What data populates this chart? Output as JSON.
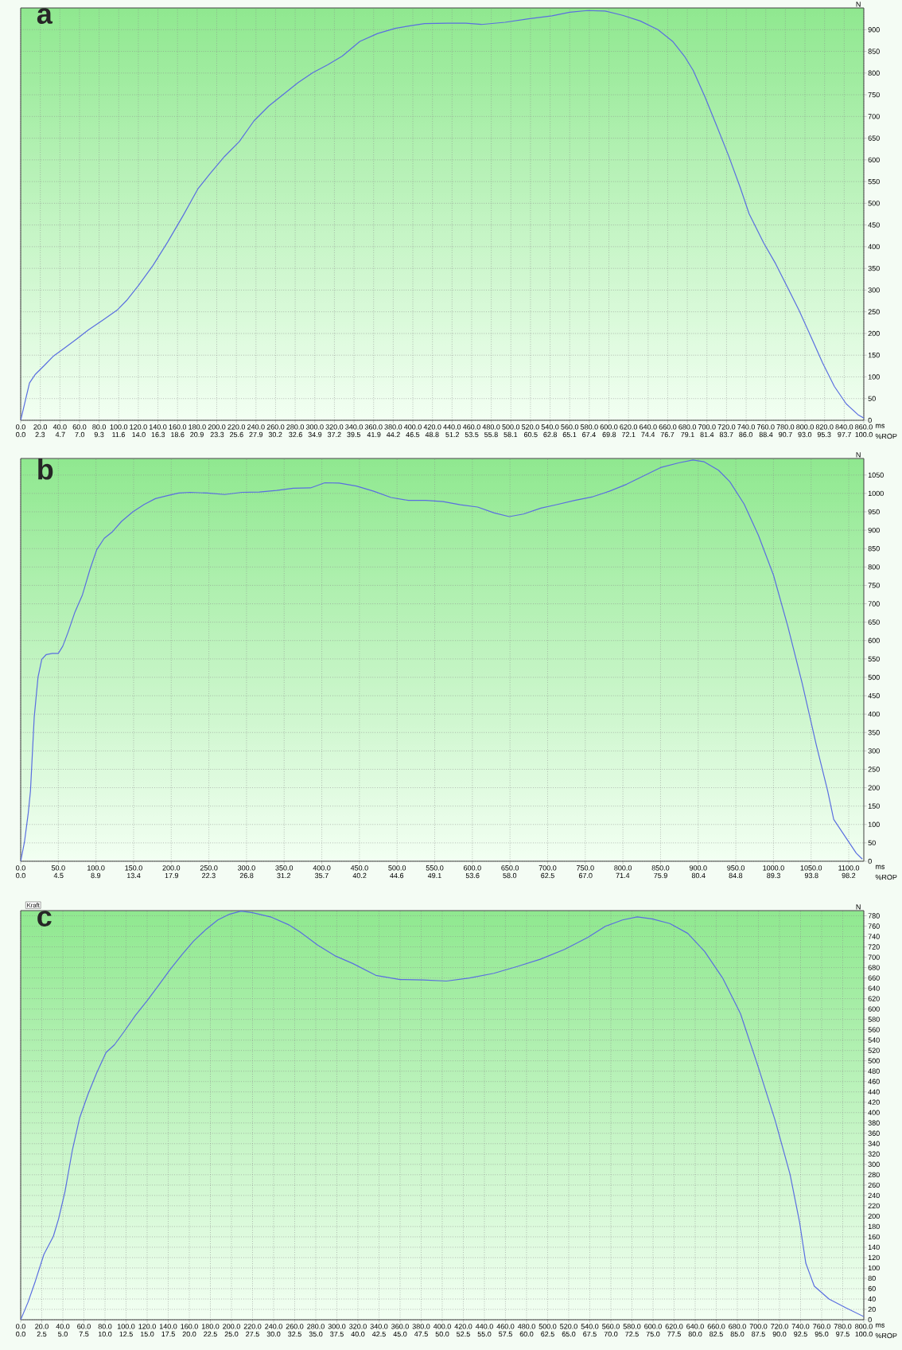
{
  "chart_data": [
    {
      "type": "line",
      "title": "a",
      "xlabel": "ms",
      "x2label": "%ROP",
      "ylabel": "N",
      "color": "#5a6ee0",
      "grid": true,
      "x": [
        0,
        9,
        15,
        24,
        33,
        45,
        57,
        69,
        84,
        99,
        108,
        120,
        135,
        150,
        166,
        181,
        193,
        208,
        223,
        238,
        253,
        268,
        283,
        298,
        313,
        328,
        346,
        364,
        382,
        400,
        412,
        436,
        454,
        470,
        494,
        518,
        542,
        560,
        578,
        596,
        614,
        632,
        650,
        665,
        677,
        686,
        698,
        710,
        722,
        734,
        743,
        758,
        770,
        782,
        794,
        806,
        818,
        830,
        842,
        854,
        860
      ],
      "values": [
        0,
        86,
        106,
        126,
        147,
        167,
        187,
        208,
        231,
        255,
        276,
        310,
        357,
        411,
        473,
        534,
        568,
        608,
        642,
        690,
        724,
        751,
        778,
        801,
        819,
        839,
        873,
        891,
        903,
        910,
        914,
        915,
        915,
        912,
        917,
        925,
        932,
        940,
        944,
        943,
        933,
        920,
        900,
        873,
        839,
        806,
        745,
        678,
        610,
        536,
        476,
        408,
        361,
        307,
        253,
        193,
        132,
        78,
        38,
        13,
        5
      ],
      "xlim": [
        0,
        860
      ],
      "ylim": [
        0,
        950
      ],
      "xticks": [
        {
          "value": 0,
          "label": "0.0"
        },
        {
          "value": 20,
          "label": "20.0"
        },
        {
          "value": 40,
          "label": "40.0"
        },
        {
          "value": 60,
          "label": "60.0"
        },
        {
          "value": 80,
          "label": "80.0"
        },
        {
          "value": 100,
          "label": "100.0"
        },
        {
          "value": 120,
          "label": "120.0"
        },
        {
          "value": 140,
          "label": "140.0"
        },
        {
          "value": 160,
          "label": "160.0"
        },
        {
          "value": 180,
          "label": "180.0"
        },
        {
          "value": 200,
          "label": "200.0"
        },
        {
          "value": 220,
          "label": "220.0"
        },
        {
          "value": 240,
          "label": "240.0"
        },
        {
          "value": 260,
          "label": "260.0"
        },
        {
          "value": 280,
          "label": "280.0"
        },
        {
          "value": 300,
          "label": "300.0"
        },
        {
          "value": 320,
          "label": "320.0"
        },
        {
          "value": 340,
          "label": "340.0"
        },
        {
          "value": 360,
          "label": "360.0"
        },
        {
          "value": 380,
          "label": "380.0"
        },
        {
          "value": 400,
          "label": "400.0"
        },
        {
          "value": 420,
          "label": "420.0"
        },
        {
          "value": 440,
          "label": "440.0"
        },
        {
          "value": 460,
          "label": "460.0"
        },
        {
          "value": 480,
          "label": "480.0"
        },
        {
          "value": 500,
          "label": "500.0"
        },
        {
          "value": 520,
          "label": "520.0"
        },
        {
          "value": 540,
          "label": "540.0"
        },
        {
          "value": 560,
          "label": "560.0"
        },
        {
          "value": 580,
          "label": "580.0"
        },
        {
          "value": 600,
          "label": "600.0"
        },
        {
          "value": 620,
          "label": "620.0"
        },
        {
          "value": 640,
          "label": "640.0"
        },
        {
          "value": 660,
          "label": "660.0"
        },
        {
          "value": 680,
          "label": "680.0"
        },
        {
          "value": 700,
          "label": "700.0"
        },
        {
          "value": 720,
          "label": "720.0"
        },
        {
          "value": 740,
          "label": "740.0"
        },
        {
          "value": 760,
          "label": "760.0"
        },
        {
          "value": 780,
          "label": "780.0"
        },
        {
          "value": 800,
          "label": "800.0"
        },
        {
          "value": 820,
          "label": "820.0"
        },
        {
          "value": 840,
          "label": "840.0"
        },
        {
          "value": 860,
          "label": "860.0"
        }
      ],
      "x2lim": [
        0,
        100
      ],
      "x2ticks": [
        {
          "value": 0,
          "label": "0.0"
        },
        {
          "value": 2.3,
          "label": "2.3"
        },
        {
          "value": 4.7,
          "label": "4.7"
        },
        {
          "value": 7,
          "label": "7.0"
        },
        {
          "value": 9.3,
          "label": "9.3"
        },
        {
          "value": 11.6,
          "label": "11.6"
        },
        {
          "value": 14,
          "label": "14.0"
        },
        {
          "value": 16.3,
          "label": "16.3"
        },
        {
          "value": 18.6,
          "label": "18.6"
        },
        {
          "value": 20.9,
          "label": "20.9"
        },
        {
          "value": 23.3,
          "label": "23.3"
        },
        {
          "value": 25.6,
          "label": "25.6"
        },
        {
          "value": 27.9,
          "label": "27.9"
        },
        {
          "value": 30.2,
          "label": "30.2"
        },
        {
          "value": 32.6,
          "label": "32.6"
        },
        {
          "value": 34.9,
          "label": "34.9"
        },
        {
          "value": 37.2,
          "label": "37.2"
        },
        {
          "value": 39.5,
          "label": "39.5"
        },
        {
          "value": 41.9,
          "label": "41.9"
        },
        {
          "value": 44.2,
          "label": "44.2"
        },
        {
          "value": 46.5,
          "label": "46.5"
        },
        {
          "value": 48.8,
          "label": "48.8"
        },
        {
          "value": 51.2,
          "label": "51.2"
        },
        {
          "value": 53.5,
          "label": "53.5"
        },
        {
          "value": 55.8,
          "label": "55.8"
        },
        {
          "value": 58.1,
          "label": "58.1"
        },
        {
          "value": 60.5,
          "label": "60.5"
        },
        {
          "value": 62.8,
          "label": "62.8"
        },
        {
          "value": 65.1,
          "label": "65.1"
        },
        {
          "value": 67.4,
          "label": "67.4"
        },
        {
          "value": 69.8,
          "label": "69.8"
        },
        {
          "value": 72.1,
          "label": "72.1"
        },
        {
          "value": 74.4,
          "label": "74.4"
        },
        {
          "value": 76.7,
          "label": "76.7"
        },
        {
          "value": 79.1,
          "label": "79.1"
        },
        {
          "value": 81.4,
          "label": "81.4"
        },
        {
          "value": 83.7,
          "label": "83.7"
        },
        {
          "value": 86,
          "label": "86.0"
        },
        {
          "value": 88.4,
          "label": "88.4"
        },
        {
          "value": 90.7,
          "label": "90.7"
        },
        {
          "value": 93,
          "label": "93.0"
        },
        {
          "value": 95.3,
          "label": "95.3"
        },
        {
          "value": 97.7,
          "label": "97.7"
        },
        {
          "value": 100,
          "label": "100.0"
        }
      ],
      "yticks": [
        0,
        50,
        100,
        150,
        200,
        250,
        300,
        350,
        400,
        450,
        500,
        550,
        600,
        650,
        700,
        750,
        800,
        850,
        900
      ]
    },
    {
      "type": "line",
      "title": "b",
      "xlabel": "ms",
      "x2label": "%ROP",
      "ylabel": "N",
      "color": "#5a6ee0",
      "grid": true,
      "x": [
        0,
        5,
        10,
        13,
        18,
        23,
        28,
        34,
        42,
        50,
        56,
        63,
        72,
        82,
        92,
        101,
        111,
        122,
        134,
        149,
        164,
        179,
        195,
        210,
        225,
        248,
        271,
        294,
        317,
        340,
        362,
        385,
        404,
        423,
        446,
        469,
        492,
        515,
        538,
        561,
        584,
        607,
        629,
        649,
        668,
        691,
        713,
        736,
        760,
        782,
        805,
        828,
        851,
        874,
        893,
        908,
        927,
        942,
        961,
        980,
        1000,
        1019,
        1038,
        1057,
        1072,
        1080,
        1095,
        1110,
        1118
      ],
      "values": [
        0,
        52,
        130,
        191,
        392,
        500,
        549,
        562,
        565,
        565,
        585,
        623,
        677,
        724,
        793,
        847,
        878,
        896,
        924,
        950,
        970,
        986,
        994,
        1001,
        1003,
        1001,
        997,
        1003,
        1004,
        1008,
        1014,
        1015,
        1029,
        1028,
        1020,
        1006,
        989,
        981,
        981,
        978,
        969,
        963,
        947,
        937,
        944,
        960,
        970,
        981,
        991,
        1006,
        1025,
        1048,
        1071,
        1083,
        1091,
        1086,
        1063,
        1032,
        971,
        886,
        778,
        639,
        485,
        315,
        191,
        114,
        68,
        22,
        6
      ],
      "xlim": [
        0,
        1120
      ],
      "ylim": [
        0,
        1095
      ],
      "xticks": [
        {
          "value": 0,
          "label": "0.0"
        },
        {
          "value": 50,
          "label": "50.0"
        },
        {
          "value": 100,
          "label": "100.0"
        },
        {
          "value": 150,
          "label": "150.0"
        },
        {
          "value": 200,
          "label": "200.0"
        },
        {
          "value": 250,
          "label": "250.0"
        },
        {
          "value": 300,
          "label": "300.0"
        },
        {
          "value": 350,
          "label": "350.0"
        },
        {
          "value": 400,
          "label": "400.0"
        },
        {
          "value": 450,
          "label": "450.0"
        },
        {
          "value": 500,
          "label": "500.0"
        },
        {
          "value": 550,
          "label": "550.0"
        },
        {
          "value": 600,
          "label": "600.0"
        },
        {
          "value": 650,
          "label": "650.0"
        },
        {
          "value": 700,
          "label": "700.0"
        },
        {
          "value": 750,
          "label": "750.0"
        },
        {
          "value": 800,
          "label": "800.0"
        },
        {
          "value": 850,
          "label": "850.0"
        },
        {
          "value": 900,
          "label": "900.0"
        },
        {
          "value": 950,
          "label": "950.0"
        },
        {
          "value": 1000,
          "label": "1000.0"
        },
        {
          "value": 1050,
          "label": "1050.0"
        },
        {
          "value": 1100,
          "label": "1100.0"
        }
      ],
      "x2lim": [
        0,
        100
      ],
      "x2ticks": [
        {
          "value": 0,
          "label": "0.0"
        },
        {
          "value": 4.5,
          "label": "4.5"
        },
        {
          "value": 8.9,
          "label": "8.9"
        },
        {
          "value": 13.4,
          "label": "13.4"
        },
        {
          "value": 17.9,
          "label": "17.9"
        },
        {
          "value": 22.3,
          "label": "22.3"
        },
        {
          "value": 26.8,
          "label": "26.8"
        },
        {
          "value": 31.2,
          "label": "31.2"
        },
        {
          "value": 35.7,
          "label": "35.7"
        },
        {
          "value": 40.2,
          "label": "40.2"
        },
        {
          "value": 44.6,
          "label": "44.6"
        },
        {
          "value": 49.1,
          "label": "49.1"
        },
        {
          "value": 53.6,
          "label": "53.6"
        },
        {
          "value": 58,
          "label": "58.0"
        },
        {
          "value": 62.5,
          "label": "62.5"
        },
        {
          "value": 67,
          "label": "67.0"
        },
        {
          "value": 71.4,
          "label": "71.4"
        },
        {
          "value": 75.9,
          "label": "75.9"
        },
        {
          "value": 80.4,
          "label": "80.4"
        },
        {
          "value": 84.8,
          "label": "84.8"
        },
        {
          "value": 89.3,
          "label": "89.3"
        },
        {
          "value": 93.8,
          "label": "93.8"
        },
        {
          "value": 98.2,
          "label": "98.2"
        }
      ],
      "yticks": [
        0,
        50,
        100,
        150,
        200,
        250,
        300,
        350,
        400,
        450,
        500,
        550,
        600,
        650,
        700,
        750,
        800,
        850,
        900,
        950,
        1000,
        1050
      ]
    },
    {
      "type": "line",
      "title": "c",
      "xlabel": "ms",
      "x2label": "%ROP",
      "ylabel": "N",
      "color": "#5a6ee0",
      "grid": true,
      "annotations": [
        "Kraft"
      ],
      "x": [
        0,
        7,
        14,
        22,
        31,
        36,
        42,
        49,
        56,
        64,
        72,
        81,
        89,
        98,
        109,
        120,
        131,
        142,
        153,
        164,
        176,
        187,
        198,
        209,
        220,
        237,
        254,
        265,
        282,
        298,
        315,
        337,
        360,
        382,
        404,
        426,
        449,
        471,
        493,
        516,
        538,
        555,
        571,
        585,
        599,
        616,
        633,
        649,
        666,
        683,
        700,
        716,
        730,
        739,
        745,
        753,
        767,
        783,
        800
      ],
      "values": [
        0,
        34,
        75,
        126,
        161,
        195,
        247,
        327,
        390,
        436,
        476,
        516,
        531,
        556,
        588,
        616,
        646,
        677,
        705,
        731,
        754,
        772,
        783,
        789,
        786,
        778,
        763,
        749,
        723,
        703,
        688,
        665,
        657,
        656,
        654,
        660,
        669,
        682,
        696,
        715,
        738,
        760,
        772,
        778,
        774,
        765,
        746,
        711,
        660,
        591,
        487,
        384,
        281,
        189,
        109,
        65,
        40,
        23,
        6
      ],
      "xlim": [
        0,
        800
      ],
      "ylim": [
        0,
        790
      ],
      "xticks": [
        {
          "value": 0,
          "label": "0.0"
        },
        {
          "value": 20,
          "label": "20.0"
        },
        {
          "value": 40,
          "label": "40.0"
        },
        {
          "value": 60,
          "label": "60.0"
        },
        {
          "value": 80,
          "label": "80.0"
        },
        {
          "value": 100,
          "label": "100.0"
        },
        {
          "value": 120,
          "label": "120.0"
        },
        {
          "value": 140,
          "label": "140.0"
        },
        {
          "value": 160,
          "label": "160.0"
        },
        {
          "value": 180,
          "label": "180.0"
        },
        {
          "value": 200,
          "label": "200.0"
        },
        {
          "value": 220,
          "label": "220.0"
        },
        {
          "value": 240,
          "label": "240.0"
        },
        {
          "value": 260,
          "label": "260.0"
        },
        {
          "value": 280,
          "label": "280.0"
        },
        {
          "value": 300,
          "label": "300.0"
        },
        {
          "value": 320,
          "label": "320.0"
        },
        {
          "value": 340,
          "label": "340.0"
        },
        {
          "value": 360,
          "label": "360.0"
        },
        {
          "value": 380,
          "label": "380.0"
        },
        {
          "value": 400,
          "label": "400.0"
        },
        {
          "value": 420,
          "label": "420.0"
        },
        {
          "value": 440,
          "label": "440.0"
        },
        {
          "value": 460,
          "label": "460.0"
        },
        {
          "value": 480,
          "label": "480.0"
        },
        {
          "value": 500,
          "label": "500.0"
        },
        {
          "value": 520,
          "label": "520.0"
        },
        {
          "value": 540,
          "label": "540.0"
        },
        {
          "value": 560,
          "label": "560.0"
        },
        {
          "value": 580,
          "label": "580.0"
        },
        {
          "value": 600,
          "label": "600.0"
        },
        {
          "value": 620,
          "label": "620.0"
        },
        {
          "value": 640,
          "label": "640.0"
        },
        {
          "value": 660,
          "label": "660.0"
        },
        {
          "value": 680,
          "label": "680.0"
        },
        {
          "value": 700,
          "label": "700.0"
        },
        {
          "value": 720,
          "label": "720.0"
        },
        {
          "value": 740,
          "label": "740.0"
        },
        {
          "value": 760,
          "label": "760.0"
        },
        {
          "value": 780,
          "label": "780.0"
        },
        {
          "value": 800,
          "label": "800.0"
        }
      ],
      "x2lim": [
        0,
        100
      ],
      "x2ticks": [
        {
          "value": 0,
          "label": "0.0"
        },
        {
          "value": 2.5,
          "label": "2.5"
        },
        {
          "value": 5,
          "label": "5.0"
        },
        {
          "value": 7.5,
          "label": "7.5"
        },
        {
          "value": 10,
          "label": "10.0"
        },
        {
          "value": 12.5,
          "label": "12.5"
        },
        {
          "value": 15,
          "label": "15.0"
        },
        {
          "value": 17.5,
          "label": "17.5"
        },
        {
          "value": 20,
          "label": "20.0"
        },
        {
          "value": 22.5,
          "label": "22.5"
        },
        {
          "value": 25,
          "label": "25.0"
        },
        {
          "value": 27.5,
          "label": "27.5"
        },
        {
          "value": 30,
          "label": "30.0"
        },
        {
          "value": 32.5,
          "label": "32.5"
        },
        {
          "value": 35,
          "label": "35.0"
        },
        {
          "value": 37.5,
          "label": "37.5"
        },
        {
          "value": 40,
          "label": "40.0"
        },
        {
          "value": 42.5,
          "label": "42.5"
        },
        {
          "value": 45,
          "label": "45.0"
        },
        {
          "value": 47.5,
          "label": "47.5"
        },
        {
          "value": 50,
          "label": "50.0"
        },
        {
          "value": 52.5,
          "label": "52.5"
        },
        {
          "value": 55,
          "label": "55.0"
        },
        {
          "value": 57.5,
          "label": "57.5"
        },
        {
          "value": 60,
          "label": "60.0"
        },
        {
          "value": 62.5,
          "label": "62.5"
        },
        {
          "value": 65,
          "label": "65.0"
        },
        {
          "value": 67.5,
          "label": "67.5"
        },
        {
          "value": 70,
          "label": "70.0"
        },
        {
          "value": 72.5,
          "label": "72.5"
        },
        {
          "value": 75,
          "label": "75.0"
        },
        {
          "value": 77.5,
          "label": "77.5"
        },
        {
          "value": 80,
          "label": "80.0"
        },
        {
          "value": 82.5,
          "label": "82.5"
        },
        {
          "value": 85,
          "label": "85.0"
        },
        {
          "value": 87.5,
          "label": "87.5"
        },
        {
          "value": 90,
          "label": "90.0"
        },
        {
          "value": 92.5,
          "label": "92.5"
        },
        {
          "value": 95,
          "label": "95.0"
        },
        {
          "value": 97.5,
          "label": "97.5"
        },
        {
          "value": 100,
          "label": "100.0"
        }
      ],
      "yticks": [
        0,
        20,
        40,
        60,
        80,
        100,
        120,
        140,
        160,
        180,
        200,
        220,
        240,
        260,
        280,
        300,
        320,
        340,
        360,
        380,
        400,
        420,
        440,
        460,
        480,
        500,
        520,
        540,
        560,
        580,
        600,
        620,
        640,
        660,
        680,
        700,
        720,
        740,
        760,
        780
      ]
    }
  ]
}
